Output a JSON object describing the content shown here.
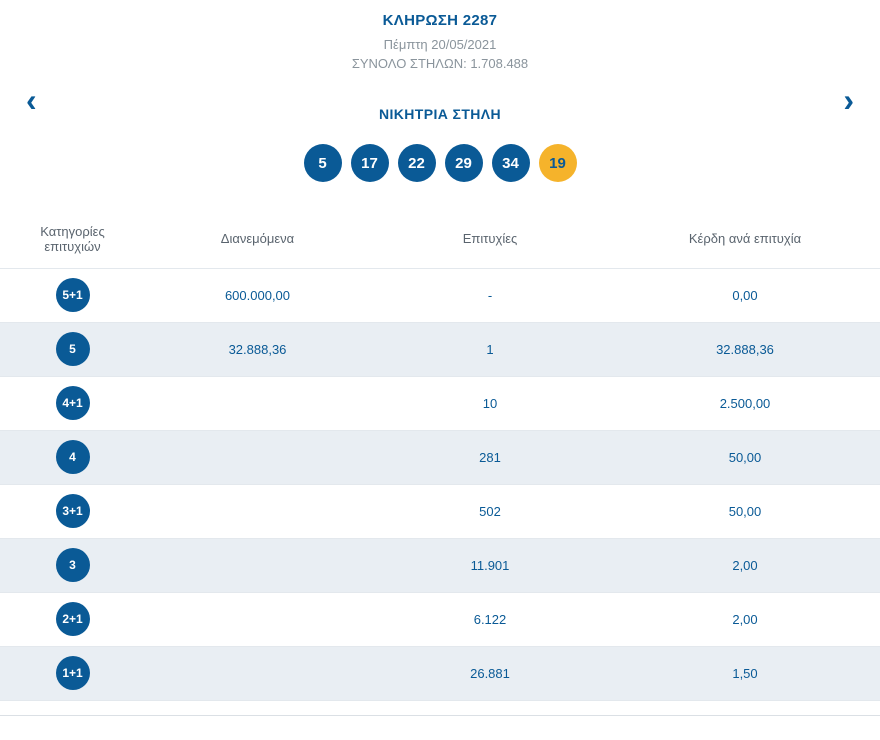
{
  "header": {
    "draw_title": "ΚΛΗΡΩΣΗ 2287",
    "draw_date": "Πέμπτη 20/05/2021",
    "total_columns": "ΣΥΝΟΛΟ ΣΤΗΛΩΝ: 1.708.488"
  },
  "nav": {
    "prev_icon": "‹",
    "next_icon": "›"
  },
  "winning_column": {
    "title": "ΝΙΚΗΤΡΙΑ ΣΤΗΛΗ",
    "numbers": [
      "5",
      "17",
      "22",
      "29",
      "34"
    ],
    "joker_number": "19"
  },
  "table": {
    "headers": [
      "Κατηγορίες επιτυχιών",
      "Διανεμόμενα",
      "Επιτυχίες",
      "Κέρδη ανά επιτυχία"
    ],
    "rows": [
      {
        "category": "5+1",
        "distributed": "600.000,00",
        "winners": "-",
        "prize": "0,00"
      },
      {
        "category": "5",
        "distributed": "32.888,36",
        "winners": "1",
        "prize": "32.888,36"
      },
      {
        "category": "4+1",
        "distributed": "",
        "winners": "10",
        "prize": "2.500,00"
      },
      {
        "category": "4",
        "distributed": "",
        "winners": "281",
        "prize": "50,00"
      },
      {
        "category": "3+1",
        "distributed": "",
        "winners": "502",
        "prize": "50,00"
      },
      {
        "category": "3",
        "distributed": "",
        "winners": "11.901",
        "prize": "2,00"
      },
      {
        "category": "2+1",
        "distributed": "",
        "winners": "6.122",
        "prize": "2,00"
      },
      {
        "category": "1+1",
        "distributed": "",
        "winners": "26.881",
        "prize": "1,50"
      }
    ]
  },
  "colors": {
    "primary_blue": "#0a5a96",
    "joker_yellow": "#f5b32b",
    "alt_row_bg": "#e9eef3",
    "muted_text": "#8a949c",
    "header_text": "#5a646e"
  }
}
